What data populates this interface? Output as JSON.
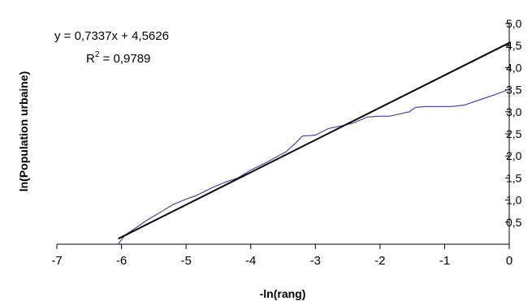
{
  "chart_data": {
    "type": "line",
    "title": "",
    "xlabel": "-ln(rang)",
    "ylabel": "ln(Population urbaine)",
    "xlim": [
      -7,
      0
    ],
    "ylim": [
      0,
      5
    ],
    "x_ticks": [
      -7,
      -6,
      -5,
      -4,
      -3,
      -2,
      -1,
      0
    ],
    "x_tick_labels": [
      "-7",
      "-6",
      "-5",
      "-4",
      "-3",
      "-2",
      "-1",
      "0"
    ],
    "y_ticks": [
      0.5,
      1.0,
      1.5,
      2.0,
      2.5,
      3.0,
      3.5,
      4.0,
      4.5,
      5.0
    ],
    "y_tick_labels": [
      "0,5",
      "1,0",
      "1,5",
      "2,0",
      "2,5",
      "3,0",
      "3,5",
      "4,0",
      "4,5",
      "5,0"
    ],
    "y_axis_position": "right",
    "grid": false,
    "legend": false,
    "series": [
      {
        "role": "data",
        "color": "#3a3aa0",
        "x": [
          -6.05,
          -5.95,
          -5.8,
          -5.6,
          -5.4,
          -5.2,
          -5.0,
          -4.85,
          -4.6,
          -4.4,
          -4.2,
          -4.0,
          -3.8,
          -3.6,
          -3.45,
          -3.3,
          -3.2,
          -3.0,
          -2.8,
          -2.6,
          -2.4,
          -2.2,
          -2.0,
          -1.85,
          -1.7,
          -1.55,
          -1.45,
          -1.3,
          -1.1,
          -0.9,
          -0.7,
          -0.5,
          -0.3,
          -0.1,
          0.0
        ],
        "y": [
          0.0,
          0.2,
          0.35,
          0.55,
          0.72,
          0.9,
          1.02,
          1.1,
          1.28,
          1.4,
          1.5,
          1.68,
          1.82,
          1.98,
          2.1,
          2.3,
          2.45,
          2.47,
          2.62,
          2.68,
          2.75,
          2.88,
          2.9,
          2.9,
          2.95,
          3.0,
          3.1,
          3.12,
          3.12,
          3.12,
          3.15,
          3.25,
          3.35,
          3.45,
          3.52
        ]
      }
    ],
    "trendline": {
      "role": "linear fit",
      "color": "#000000",
      "slope": 0.7337,
      "intercept": 4.5626,
      "x_range": [
        -6.05,
        0
      ],
      "equation_label": "y = 0,7337x + 4,5626",
      "r2_prefix": "R",
      "r2_exponent": "2",
      "r2_value": " = 0,9789"
    }
  }
}
